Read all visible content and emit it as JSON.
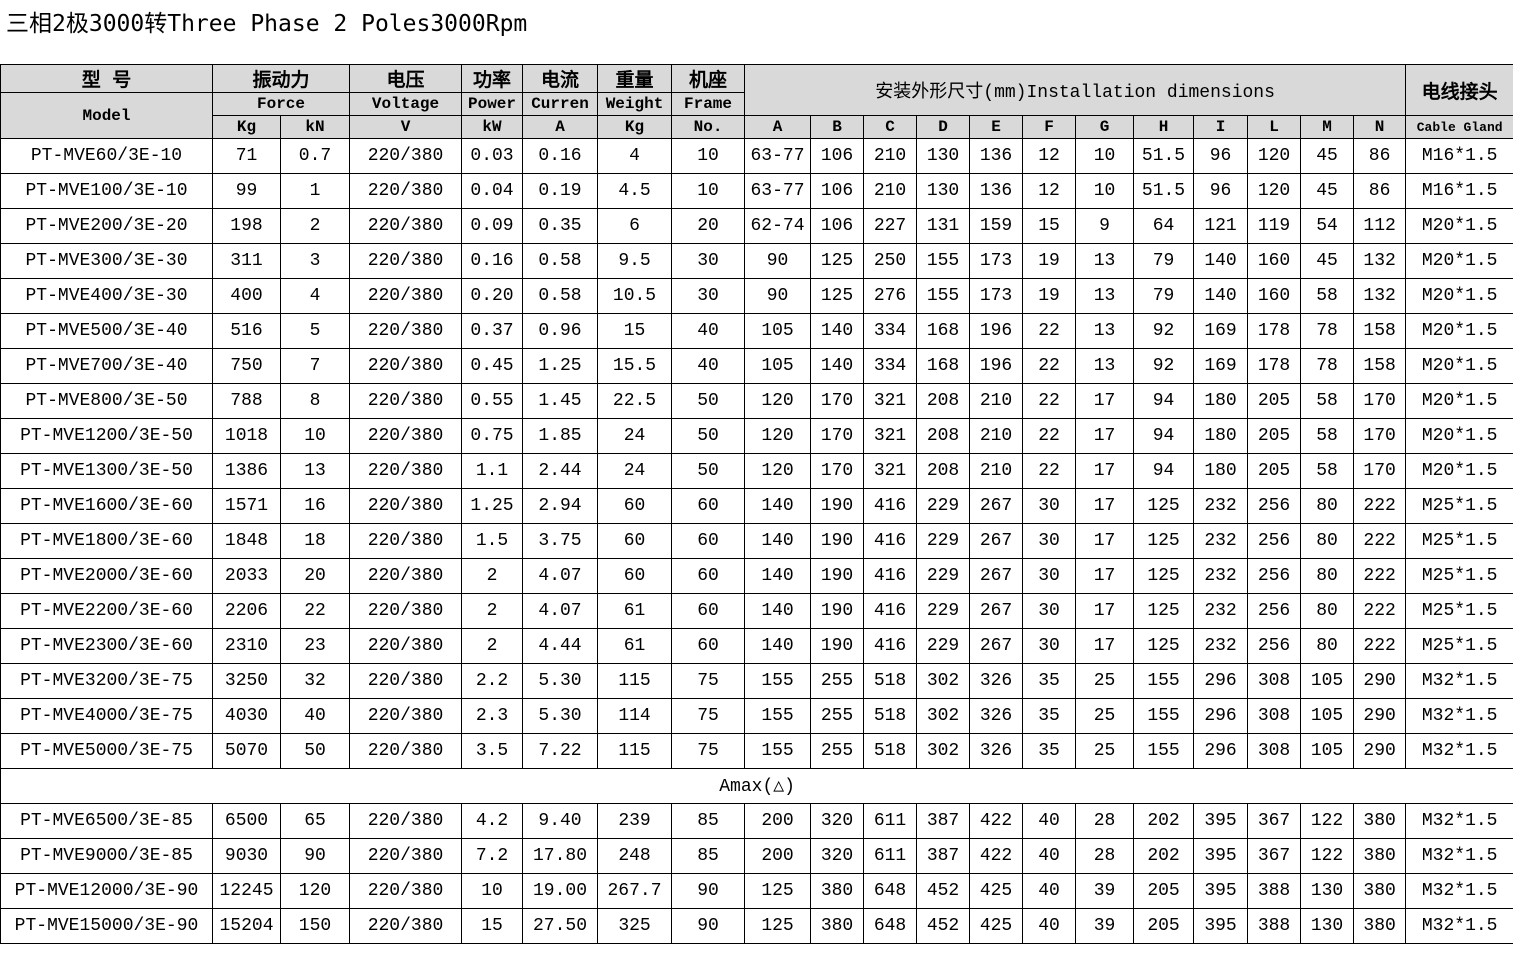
{
  "title": "三相2极3000转Three Phase 2 Poles3000Rpm",
  "header": {
    "model_cn": "型 号",
    "model_en": "Model",
    "force_cn": "振动力",
    "force_en": "Force",
    "force_kg": "Kg",
    "force_kn": "kN",
    "voltage_cn": "电压",
    "voltage_en": "Voltage",
    "voltage_unit": "V",
    "power_cn": "功率",
    "power_en": "Power",
    "power_unit": "kW",
    "current_cn": "电流",
    "current_en": "Curren",
    "current_unit": "A",
    "weight_cn": "重量",
    "weight_en": "Weight",
    "weight_unit": "Kg",
    "frame_cn": "机座",
    "frame_en": "Frame",
    "frame_unit": "No.",
    "dimensions": "安装外形尺寸(mm)Installation dimensions",
    "dim_cols": [
      "A",
      "B",
      "C",
      "D",
      "E",
      "F",
      "G",
      "H",
      "I",
      "L",
      "M",
      "N"
    ],
    "cable_cn": "电线接头",
    "cable_en": "Cable Gland"
  },
  "rows": [
    [
      "PT-MVE60/3E-10",
      "71",
      "0.7",
      "220/380",
      "0.03",
      "0.16",
      "4",
      "10",
      "63-77",
      "106",
      "210",
      "130",
      "136",
      "12",
      "10",
      "51.5",
      "96",
      "120",
      "45",
      "86",
      "M16*1.5"
    ],
    [
      "PT-MVE100/3E-10",
      "99",
      "1",
      "220/380",
      "0.04",
      "0.19",
      "4.5",
      "10",
      "63-77",
      "106",
      "210",
      "130",
      "136",
      "12",
      "10",
      "51.5",
      "96",
      "120",
      "45",
      "86",
      "M16*1.5"
    ],
    [
      "PT-MVE200/3E-20",
      "198",
      "2",
      "220/380",
      "0.09",
      "0.35",
      "6",
      "20",
      "62-74",
      "106",
      "227",
      "131",
      "159",
      "15",
      "9",
      "64",
      "121",
      "119",
      "54",
      "112",
      "M20*1.5"
    ],
    [
      "PT-MVE300/3E-30",
      "311",
      "3",
      "220/380",
      "0.16",
      "0.58",
      "9.5",
      "30",
      "90",
      "125",
      "250",
      "155",
      "173",
      "19",
      "13",
      "79",
      "140",
      "160",
      "45",
      "132",
      "M20*1.5"
    ],
    [
      "PT-MVE400/3E-30",
      "400",
      "4",
      "220/380",
      "0.20",
      "0.58",
      "10.5",
      "30",
      "90",
      "125",
      "276",
      "155",
      "173",
      "19",
      "13",
      "79",
      "140",
      "160",
      "58",
      "132",
      "M20*1.5"
    ],
    [
      "PT-MVE500/3E-40",
      "516",
      "5",
      "220/380",
      "0.37",
      "0.96",
      "15",
      "40",
      "105",
      "140",
      "334",
      "168",
      "196",
      "22",
      "13",
      "92",
      "169",
      "178",
      "78",
      "158",
      "M20*1.5"
    ],
    [
      "PT-MVE700/3E-40",
      "750",
      "7",
      "220/380",
      "0.45",
      "1.25",
      "15.5",
      "40",
      "105",
      "140",
      "334",
      "168",
      "196",
      "22",
      "13",
      "92",
      "169",
      "178",
      "78",
      "158",
      "M20*1.5"
    ],
    [
      "PT-MVE800/3E-50",
      "788",
      "8",
      "220/380",
      "0.55",
      "1.45",
      "22.5",
      "50",
      "120",
      "170",
      "321",
      "208",
      "210",
      "22",
      "17",
      "94",
      "180",
      "205",
      "58",
      "170",
      "M20*1.5"
    ],
    [
      "PT-MVE1200/3E-50",
      "1018",
      "10",
      "220/380",
      "0.75",
      "1.85",
      "24",
      "50",
      "120",
      "170",
      "321",
      "208",
      "210",
      "22",
      "17",
      "94",
      "180",
      "205",
      "58",
      "170",
      "M20*1.5"
    ],
    [
      "PT-MVE1300/3E-50",
      "1386",
      "13",
      "220/380",
      "1.1",
      "2.44",
      "24",
      "50",
      "120",
      "170",
      "321",
      "208",
      "210",
      "22",
      "17",
      "94",
      "180",
      "205",
      "58",
      "170",
      "M20*1.5"
    ],
    [
      "PT-MVE1600/3E-60",
      "1571",
      "16",
      "220/380",
      "1.25",
      "2.94",
      "60",
      "60",
      "140",
      "190",
      "416",
      "229",
      "267",
      "30",
      "17",
      "125",
      "232",
      "256",
      "80",
      "222",
      "M25*1.5"
    ],
    [
      "PT-MVE1800/3E-60",
      "1848",
      "18",
      "220/380",
      "1.5",
      "3.75",
      "60",
      "60",
      "140",
      "190",
      "416",
      "229",
      "267",
      "30",
      "17",
      "125",
      "232",
      "256",
      "80",
      "222",
      "M25*1.5"
    ],
    [
      "PT-MVE2000/3E-60",
      "2033",
      "20",
      "220/380",
      "2",
      "4.07",
      "60",
      "60",
      "140",
      "190",
      "416",
      "229",
      "267",
      "30",
      "17",
      "125",
      "232",
      "256",
      "80",
      "222",
      "M25*1.5"
    ],
    [
      "PT-MVE2200/3E-60",
      "2206",
      "22",
      "220/380",
      "2",
      "4.07",
      "61",
      "60",
      "140",
      "190",
      "416",
      "229",
      "267",
      "30",
      "17",
      "125",
      "232",
      "256",
      "80",
      "222",
      "M25*1.5"
    ],
    [
      "PT-MVE2300/3E-60",
      "2310",
      "23",
      "220/380",
      "2",
      "4.44",
      "61",
      "60",
      "140",
      "190",
      "416",
      "229",
      "267",
      "30",
      "17",
      "125",
      "232",
      "256",
      "80",
      "222",
      "M25*1.5"
    ],
    [
      "PT-MVE3200/3E-75",
      "3250",
      "32",
      "220/380",
      "2.2",
      "5.30",
      "115",
      "75",
      "155",
      "255",
      "518",
      "302",
      "326",
      "35",
      "25",
      "155",
      "296",
      "308",
      "105",
      "290",
      "M32*1.5"
    ],
    [
      "PT-MVE4000/3E-75",
      "4030",
      "40",
      "220/380",
      "2.3",
      "5.30",
      "114",
      "75",
      "155",
      "255",
      "518",
      "302",
      "326",
      "35",
      "25",
      "155",
      "296",
      "308",
      "105",
      "290",
      "M32*1.5"
    ],
    [
      "PT-MVE5000/3E-75",
      "5070",
      "50",
      "220/380",
      "3.5",
      "7.22",
      "115",
      "75",
      "155",
      "255",
      "518",
      "302",
      "326",
      "35",
      "25",
      "155",
      "296",
      "308",
      "105",
      "290",
      "M32*1.5"
    ]
  ],
  "amax_label": "Amax(△)",
  "rows2": [
    [
      "PT-MVE6500/3E-85",
      "6500",
      "65",
      "220/380",
      "4.2",
      "9.40",
      "239",
      "85",
      "200",
      "320",
      "611",
      "387",
      "422",
      "40",
      "28",
      "202",
      "395",
      "367",
      "122",
      "380",
      "M32*1.5"
    ],
    [
      "PT-MVE9000/3E-85",
      "9030",
      "90",
      "220/380",
      "7.2",
      "17.80",
      "248",
      "85",
      "200",
      "320",
      "611",
      "387",
      "422",
      "40",
      "28",
      "202",
      "395",
      "367",
      "122",
      "380",
      "M32*1.5"
    ],
    [
      "PT-MVE12000/3E-90",
      "12245",
      "120",
      "220/380",
      "10",
      "19.00",
      "267.7",
      "90",
      "125",
      "380",
      "648",
      "452",
      "425",
      "40",
      "39",
      "205",
      "395",
      "388",
      "130",
      "380",
      "M32*1.5"
    ],
    [
      "PT-MVE15000/3E-90",
      "15204",
      "150",
      "220/380",
      "15",
      "27.50",
      "325",
      "90",
      "125",
      "380",
      "648",
      "452",
      "425",
      "40",
      "39",
      "205",
      "395",
      "388",
      "130",
      "380",
      "M32*1.5"
    ]
  ]
}
